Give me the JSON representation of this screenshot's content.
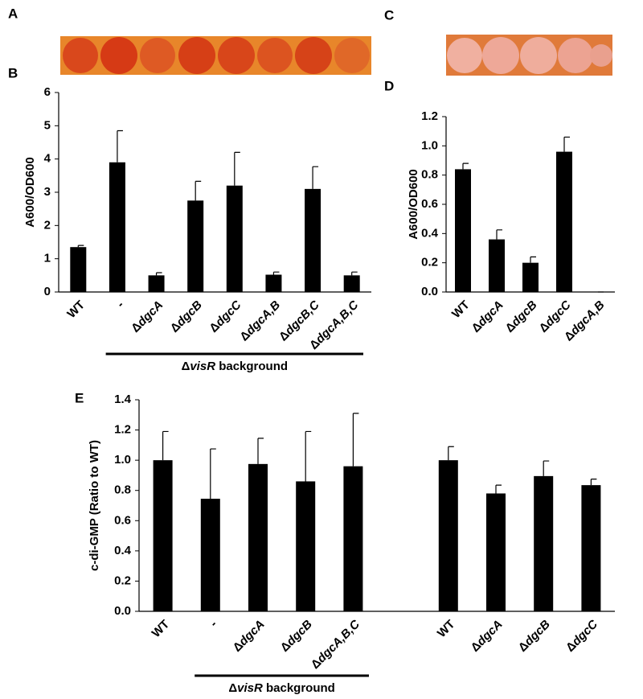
{
  "images": [
    {
      "panel": "A"
    },
    {
      "panel": "C"
    }
  ],
  "chart_data": [
    {
      "type": "bar",
      "panel": "B",
      "ylabel": "A600/OD600",
      "categories": [
        "WT",
        "-",
        "ΔdgcA",
        "ΔdgcB",
        "ΔdgcC",
        "ΔdgcA,B",
        "ΔdgcB,C",
        "ΔdgcA,B,C"
      ],
      "values": [
        1.35,
        3.9,
        0.5,
        2.75,
        3.2,
        0.52,
        3.1,
        0.5
      ],
      "errors": [
        0.05,
        0.95,
        0.08,
        0.58,
        1.0,
        0.08,
        0.67,
        0.1
      ],
      "color": "#000000",
      "ylim": [
        0,
        6
      ],
      "yticks": [
        0,
        1,
        2,
        3,
        4,
        5,
        6
      ],
      "background_label": "ΔvisR background"
    },
    {
      "type": "bar",
      "panel": "D",
      "ylabel": "A600/OD600",
      "categories": [
        "WT",
        "ΔdgcA",
        "ΔdgcB",
        "ΔdgcC",
        "ΔdgcA,B"
      ],
      "values": [
        0.84,
        0.36,
        0.2,
        0.96,
        0
      ],
      "errors": [
        0.04,
        0.065,
        0.04,
        0.1,
        0
      ],
      "color": "#000000",
      "ylim": [
        0,
        1.2
      ],
      "yticks": [
        {
          "value": 0,
          "label": "0.0"
        },
        0.2,
        0.4,
        0.6,
        0.8,
        {
          "value": 1,
          "label": "1.0"
        },
        1.2
      ]
    },
    {
      "type": "bar",
      "panel": "E",
      "ylabel": "c-di-GMP (Ratio to WT)",
      "categories": [
        "WT",
        "-",
        "ΔdgcA",
        "ΔdgcB",
        "ΔdgcA,B,C",
        null,
        "WT",
        "ΔdgcA",
        "ΔdgcB",
        "ΔdgcC"
      ],
      "values": [
        1.0,
        0.745,
        0.975,
        0.86,
        0.96,
        null,
        1.0,
        0.78,
        0.895,
        0.835
      ],
      "errors": [
        0.19,
        0.33,
        0.17,
        0.33,
        0.35,
        null,
        0.09,
        0.055,
        0.1,
        0.04
      ],
      "color": "#000000",
      "ylim": [
        0,
        1.4
      ],
      "yticks": [
        {
          "value": 0,
          "label": "0.0"
        },
        0.2,
        0.4,
        0.6,
        0.8,
        {
          "value": 1,
          "label": "1.0"
        },
        1.2,
        1.4
      ],
      "background_label": "ΔvisR background"
    }
  ]
}
